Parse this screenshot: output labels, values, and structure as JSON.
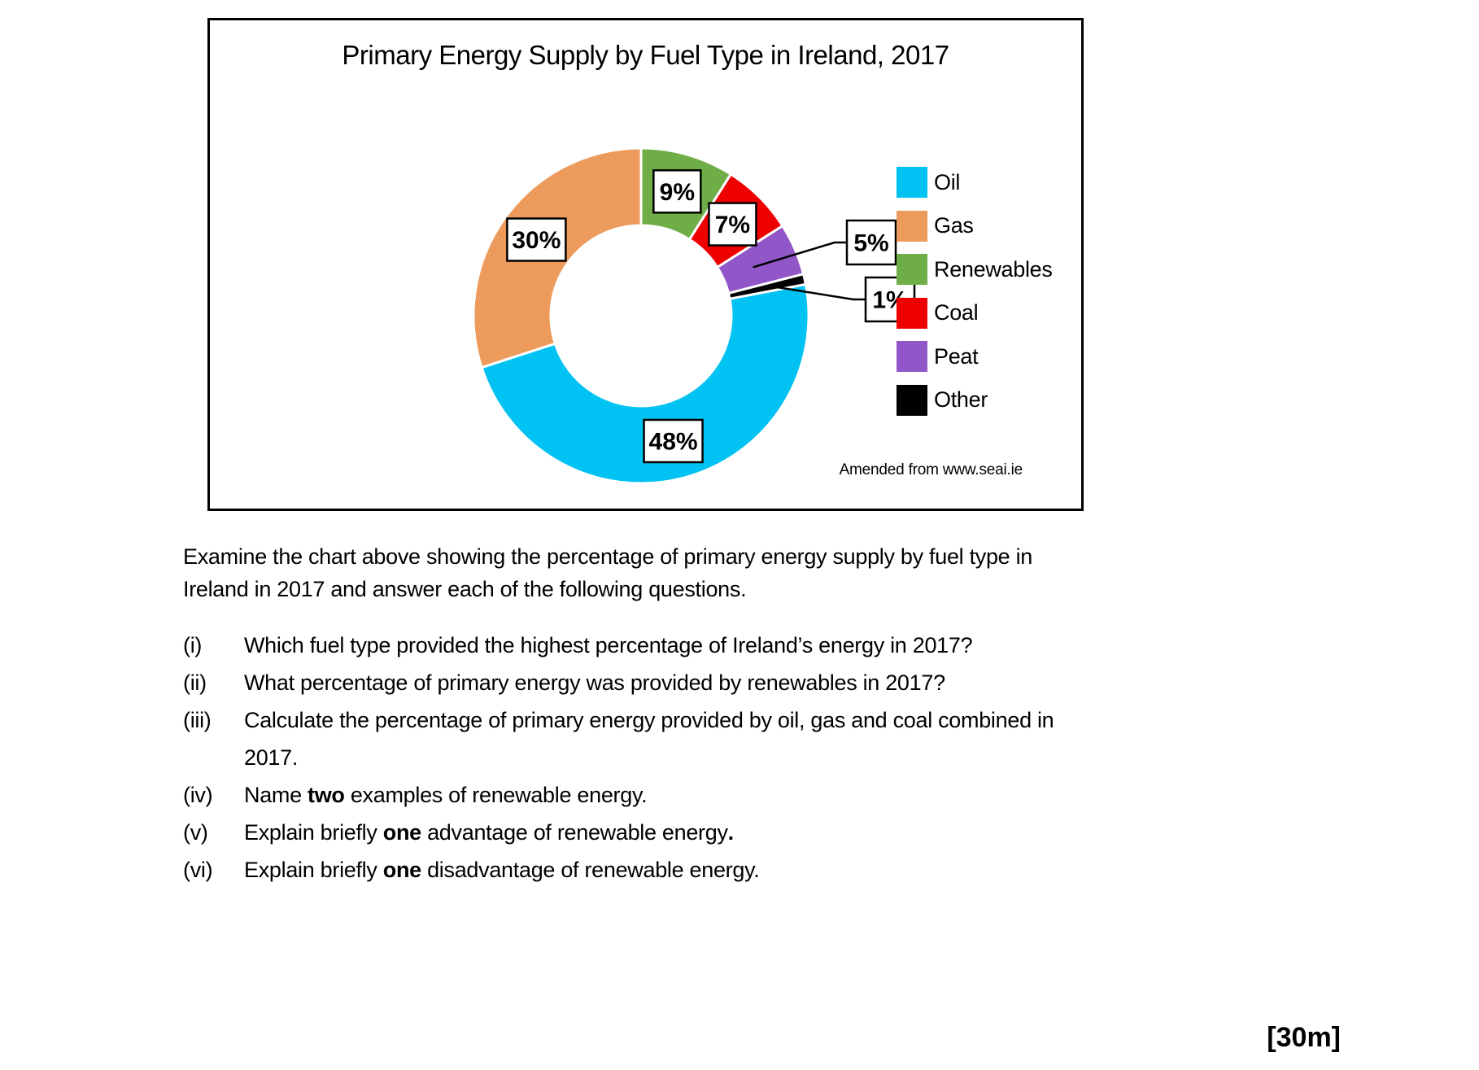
{
  "chart": {
    "title": "Primary Energy Supply by Fuel Type in Ireland, 2017",
    "source_note": "Amended from www.seai.ie"
  },
  "chart_data": {
    "type": "pie",
    "subtype": "donut",
    "title": "Primary Energy Supply by Fuel Type in Ireland, 2017",
    "unit": "%",
    "start_angle_deg": 79.2,
    "legend_position": "right",
    "source": "Amended from www.seai.ie",
    "categories": [
      "Oil",
      "Gas",
      "Renewables",
      "Coal",
      "Peat",
      "Other"
    ],
    "values": [
      48,
      30,
      9,
      7,
      5,
      1
    ],
    "slices": [
      {
        "name": "Oil",
        "value": 48,
        "label": "48%",
        "color": "#00c2f3",
        "label_style": "inside"
      },
      {
        "name": "Gas",
        "value": 30,
        "label": "30%",
        "color": "#ed9b5c",
        "label_style": "inside"
      },
      {
        "name": "Renewables",
        "value": 9,
        "label": "9%",
        "color": "#6fad47",
        "label_style": "inside"
      },
      {
        "name": "Coal",
        "value": 7,
        "label": "7%",
        "color": "#ee0000",
        "label_style": "inside"
      },
      {
        "name": "Peat",
        "value": 5,
        "label": "5%",
        "color": "#9156c8",
        "label_style": "callout"
      },
      {
        "name": "Other",
        "value": 1,
        "label": "1%",
        "color": "#000000",
        "label_style": "callout"
      }
    ]
  },
  "intro": {
    "line1": "Examine the chart above showing the percentage of primary energy supply by fuel type in",
    "line2": "Ireland in 2017 and answer each of the following questions."
  },
  "questions": {
    "items": [
      {
        "num": "(i)",
        "parts": [
          {
            "t": "Which fuel type provided the highest percentage of Ireland’s energy in 2017?"
          }
        ]
      },
      {
        "num": "(ii)",
        "parts": [
          {
            "t": "What percentage of primary energy was provided by renewables in 2017?"
          }
        ]
      },
      {
        "num": "(iii)",
        "parts": [
          {
            "t": "Calculate the percentage of primary energy provided by oil, gas and coal combined in"
          }
        ],
        "line2": "2017."
      },
      {
        "num": "(iv)",
        "parts": [
          {
            "t": "Name "
          },
          {
            "t": "two",
            "b": true
          },
          {
            "t": " examples of renewable energy."
          }
        ]
      },
      {
        "num": "(v)",
        "parts": [
          {
            "t": "Explain briefly "
          },
          {
            "t": "one",
            "b": true
          },
          {
            "t": " advantage of renewable energy"
          },
          {
            "t": ".",
            "b": true
          }
        ]
      },
      {
        "num": "(vi)",
        "parts": [
          {
            "t": "Explain briefly "
          },
          {
            "t": "one",
            "b": true
          },
          {
            "t": " disadvantage of renewable energy."
          }
        ]
      }
    ]
  },
  "marks": "[30m]"
}
